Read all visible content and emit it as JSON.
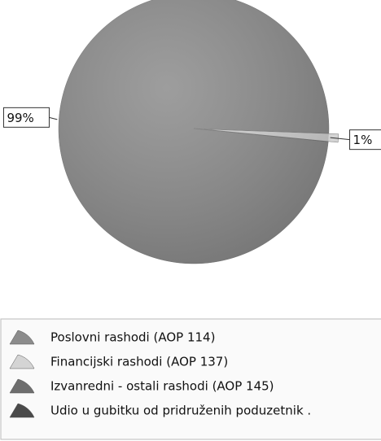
{
  "chart_data": {
    "type": "pie",
    "categories": [
      "Poslovni rashodi (AOP 114)",
      "Financijski rashodi (AOP 137)",
      "Izvanredni - ostali rashodi (AOP 145)",
      "Udio u gubitku od pridruženih poduzetnik ."
    ],
    "values": [
      99,
      1,
      0,
      0
    ],
    "value_labels": [
      "99%",
      "1%",
      null,
      null
    ],
    "colors": [
      "#8c8c8c",
      "#d4d4d4",
      "#6e6e6e",
      "#4a4a4a"
    ]
  }
}
